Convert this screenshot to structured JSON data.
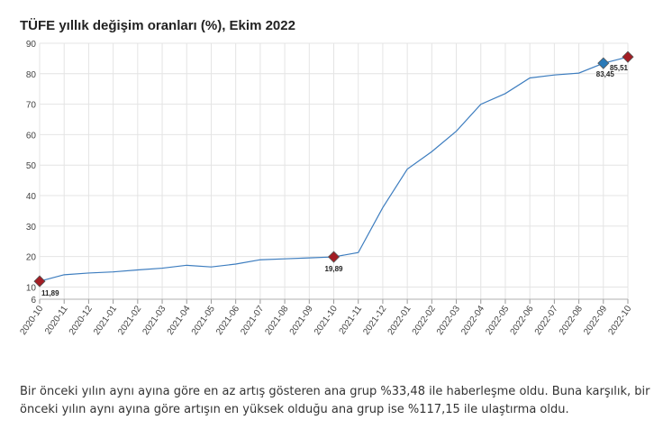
{
  "title": "TÜFE yıllık değişim oranları (%), Ekim 2022",
  "caption": "Bir önceki yılın aynı ayına göre en az artış gösteren ana grup %33,48 ile haberleşme oldu. Buna karşılık, bir önceki yılın aynı ayına göre artışın en yüksek olduğu ana grup ise %117,15 ile ulaştırma oldu.",
  "chart_data": {
    "type": "line",
    "categories": [
      "2020-10",
      "2020-11",
      "2020-12",
      "2021-01",
      "2021-02",
      "2021-03",
      "2021-04",
      "2021-05",
      "2021-06",
      "2021-07",
      "2021-08",
      "2021-09",
      "2021-10",
      "2021-11",
      "2021-12",
      "2022-01",
      "2022-02",
      "2022-03",
      "2022-04",
      "2022-05",
      "2022-06",
      "2022-07",
      "2022-08",
      "2022-09",
      "2022-10"
    ],
    "series": [
      {
        "values": [
          11.89,
          14.03,
          14.6,
          14.97,
          15.61,
          16.19,
          17.14,
          16.59,
          17.53,
          18.95,
          19.25,
          19.58,
          19.89,
          21.31,
          36.08,
          48.69,
          54.44,
          61.14,
          69.97,
          73.5,
          78.62,
          79.6,
          80.21,
          83.45,
          85.51
        ]
      }
    ],
    "ylim": [
      6,
      90
    ],
    "yticks": [
      6,
      10,
      20,
      30,
      40,
      50,
      60,
      70,
      80,
      90
    ],
    "grid": true,
    "markers": [
      {
        "index": 0,
        "label": "11,89",
        "color": "#a31d24"
      },
      {
        "index": 12,
        "label": "19,89",
        "color": "#a31d24"
      },
      {
        "index": 23,
        "label": "83,45",
        "color": "#2a7ab8"
      },
      {
        "index": 24,
        "label": "85,51",
        "color": "#a31d24"
      }
    ],
    "line_color": "#3d7dbf"
  }
}
